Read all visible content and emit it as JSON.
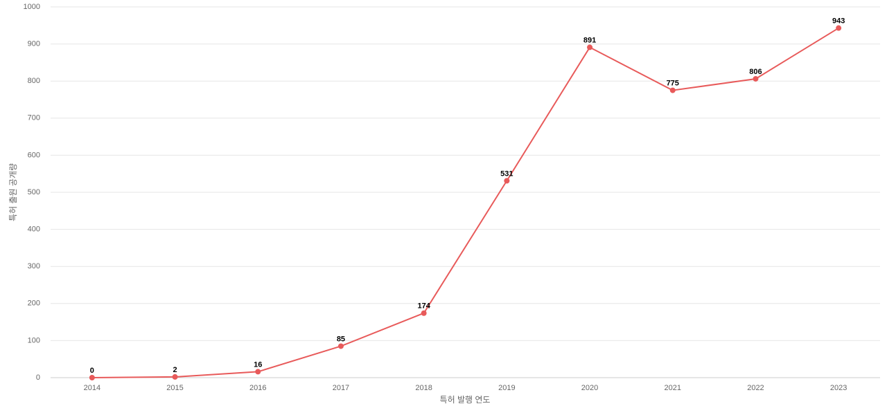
{
  "chart_data": {
    "type": "line",
    "x_label": "특허 발행 연도",
    "y_label": "특허 출원 공개량",
    "categories": [
      "2014",
      "2015",
      "2016",
      "2017",
      "2018",
      "2019",
      "2020",
      "2021",
      "2022",
      "2023"
    ],
    "values": [
      0,
      2,
      16,
      85,
      174,
      531,
      891,
      775,
      806,
      943
    ],
    "color": "#e85a5a",
    "ylim": [
      0,
      1000
    ],
    "yticks": [
      0,
      100,
      200,
      300,
      400,
      500,
      600,
      700,
      800,
      900,
      1000
    ],
    "grid": true
  }
}
